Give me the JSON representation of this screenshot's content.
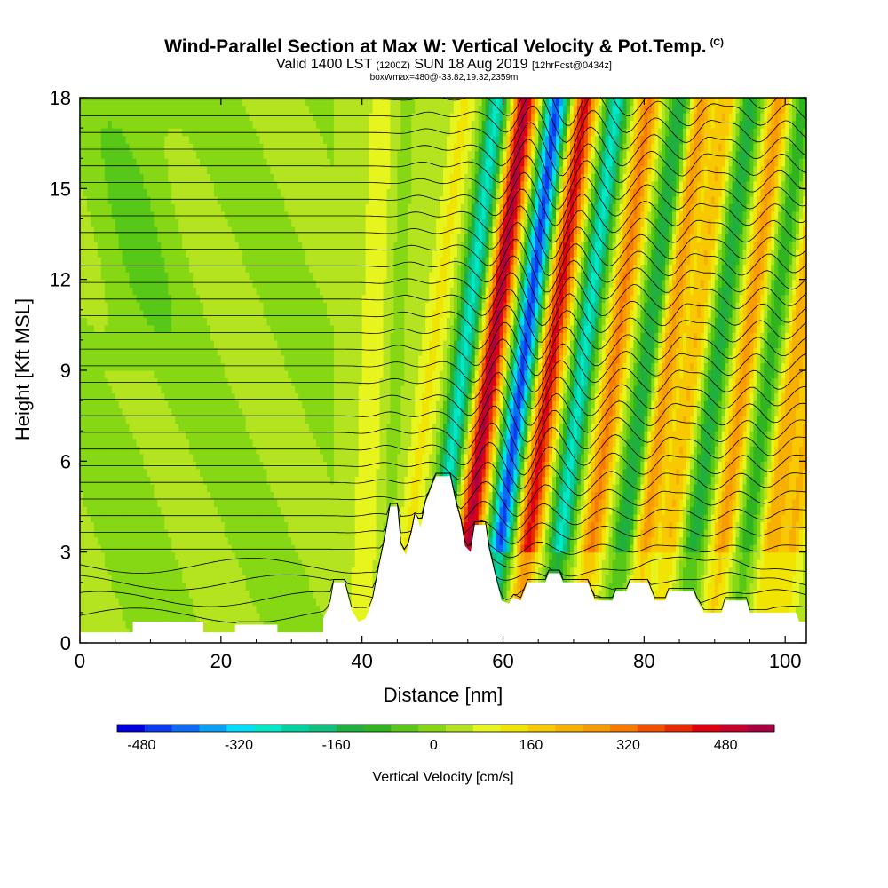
{
  "chart_data": {
    "type": "heatmap",
    "title": "Wind-Parallel Section at Max W: Vertical Velocity & Pot.Temp.",
    "title_mark": "(C)",
    "subtitle_valid": "Valid 1400 LST",
    "subtitle_utc": "(1200Z)",
    "subtitle_date": "SUN 18 Aug 2019",
    "subtitle_fcst": "[12hrFcst@0434z]",
    "box_info": "boxWmax=480@-33.82,19.32,2359m",
    "xlabel": "Distance [nm]",
    "ylabel": "Height [Kft MSL]",
    "xlim": [
      0,
      103
    ],
    "ylim": [
      0,
      18
    ],
    "x_ticks": [
      "0",
      "20",
      "40",
      "60",
      "80",
      "100"
    ],
    "y_ticks": [
      "0",
      "3",
      "6",
      "9",
      "12",
      "15",
      "18"
    ],
    "colorbar": {
      "label": "Vertical Velocity [cm/s]",
      "ticks": [
        "-480",
        "-320",
        "-160",
        "0",
        "160",
        "320",
        "480"
      ],
      "min": -520,
      "max": 560,
      "colors": [
        "#0000e0",
        "#0a3cf0",
        "#0c6cf4",
        "#0aa0f4",
        "#00dcfa",
        "#00e8c8",
        "#00d2a0",
        "#10c080",
        "#20b040",
        "#30b420",
        "#58c818",
        "#86d814",
        "#b4e420",
        "#e8f41e",
        "#f0e400",
        "#f8c800",
        "#f8b000",
        "#f89a00",
        "#f87a00",
        "#f05000",
        "#e82a00",
        "#e00010",
        "#c8002a",
        "#a80040"
      ]
    },
    "terrain": [
      {
        "x": 0,
        "h": 0.35
      },
      {
        "x": 7.5,
        "h": 0.35
      },
      {
        "x": 7.5,
        "h": 0.7
      },
      {
        "x": 17.5,
        "h": 0.7
      },
      {
        "x": 17.5,
        "h": 0.35
      },
      {
        "x": 22,
        "h": 0.35
      },
      {
        "x": 22,
        "h": 0.6
      },
      {
        "x": 28,
        "h": 0.6
      },
      {
        "x": 28,
        "h": 0.35
      },
      {
        "x": 34.5,
        "h": 0.35
      },
      {
        "x": 34.5,
        "h": 0.8
      },
      {
        "x": 35.5,
        "h": 1.3
      },
      {
        "x": 36,
        "h": 2.0
      },
      {
        "x": 37.5,
        "h": 2.0
      },
      {
        "x": 38.5,
        "h": 1.1
      },
      {
        "x": 39.5,
        "h": 0.7
      },
      {
        "x": 40.5,
        "h": 0.8
      },
      {
        "x": 41.5,
        "h": 1.4
      },
      {
        "x": 42.5,
        "h": 2.6
      },
      {
        "x": 43.3,
        "h": 3.5
      },
      {
        "x": 44,
        "h": 4.5
      },
      {
        "x": 45,
        "h": 4.5
      },
      {
        "x": 45.5,
        "h": 3.2
      },
      {
        "x": 46.2,
        "h": 2.9
      },
      {
        "x": 47,
        "h": 3.6
      },
      {
        "x": 47.6,
        "h": 4.3
      },
      {
        "x": 48.3,
        "h": 3.8
      },
      {
        "x": 49,
        "h": 4.6
      },
      {
        "x": 50.5,
        "h": 5.5
      },
      {
        "x": 52.5,
        "h": 5.5
      },
      {
        "x": 53.3,
        "h": 4.6
      },
      {
        "x": 54,
        "h": 4.0
      },
      {
        "x": 54.6,
        "h": 3.2
      },
      {
        "x": 55.4,
        "h": 3.0
      },
      {
        "x": 56,
        "h": 3.9
      },
      {
        "x": 57.5,
        "h": 3.9
      },
      {
        "x": 58,
        "h": 3.1
      },
      {
        "x": 59,
        "h": 2.1
      },
      {
        "x": 59.8,
        "h": 1.4
      },
      {
        "x": 60.8,
        "h": 1.3
      },
      {
        "x": 61.5,
        "h": 1.5
      },
      {
        "x": 62.5,
        "h": 1.4
      },
      {
        "x": 63,
        "h": 1.7
      },
      {
        "x": 63.5,
        "h": 2.0
      },
      {
        "x": 66,
        "h": 2.0
      },
      {
        "x": 66.5,
        "h": 2.3
      },
      {
        "x": 68,
        "h": 2.3
      },
      {
        "x": 68.5,
        "h": 2.0
      },
      {
        "x": 72,
        "h": 2.0
      },
      {
        "x": 72.5,
        "h": 1.7
      },
      {
        "x": 73,
        "h": 1.4
      },
      {
        "x": 75.5,
        "h": 1.4
      },
      {
        "x": 76,
        "h": 1.7
      },
      {
        "x": 77.5,
        "h": 1.7
      },
      {
        "x": 78,
        "h": 2.0
      },
      {
        "x": 80.5,
        "h": 2.0
      },
      {
        "x": 81,
        "h": 1.7
      },
      {
        "x": 81.5,
        "h": 1.4
      },
      {
        "x": 83,
        "h": 1.4
      },
      {
        "x": 83.5,
        "h": 1.7
      },
      {
        "x": 87,
        "h": 1.7
      },
      {
        "x": 87.5,
        "h": 1.4
      },
      {
        "x": 88.5,
        "h": 1.0
      },
      {
        "x": 91,
        "h": 1.0
      },
      {
        "x": 91.5,
        "h": 1.4
      },
      {
        "x": 94.5,
        "h": 1.4
      },
      {
        "x": 95,
        "h": 1.0
      },
      {
        "x": 101.5,
        "h": 1.0
      },
      {
        "x": 102,
        "h": 0.7
      },
      {
        "x": 103,
        "h": 0.7
      }
    ],
    "wave_bands": [
      {
        "x": 37.0,
        "w": -20
      },
      {
        "x": 40.5,
        "w": 70
      },
      {
        "x": 44.0,
        "w": -30
      },
      {
        "x": 47.0,
        "w": 80
      },
      {
        "x": 51.5,
        "w": -300
      },
      {
        "x": 55.5,
        "w": 480
      },
      {
        "x": 60.0,
        "w": -480
      },
      {
        "x": 64.0,
        "w": 400
      },
      {
        "x": 68.5,
        "w": -300
      },
      {
        "x": 73.0,
        "w": 260
      },
      {
        "x": 77.5,
        "w": -200
      },
      {
        "x": 80.5,
        "w": 220
      },
      {
        "x": 84.0,
        "w": 160
      },
      {
        "x": 87.5,
        "w": -180
      },
      {
        "x": 91.5,
        "w": 220
      },
      {
        "x": 95.0,
        "w": -140
      },
      {
        "x": 98.5,
        "w": 200
      },
      {
        "x": 101.5,
        "w": 160
      }
    ]
  }
}
